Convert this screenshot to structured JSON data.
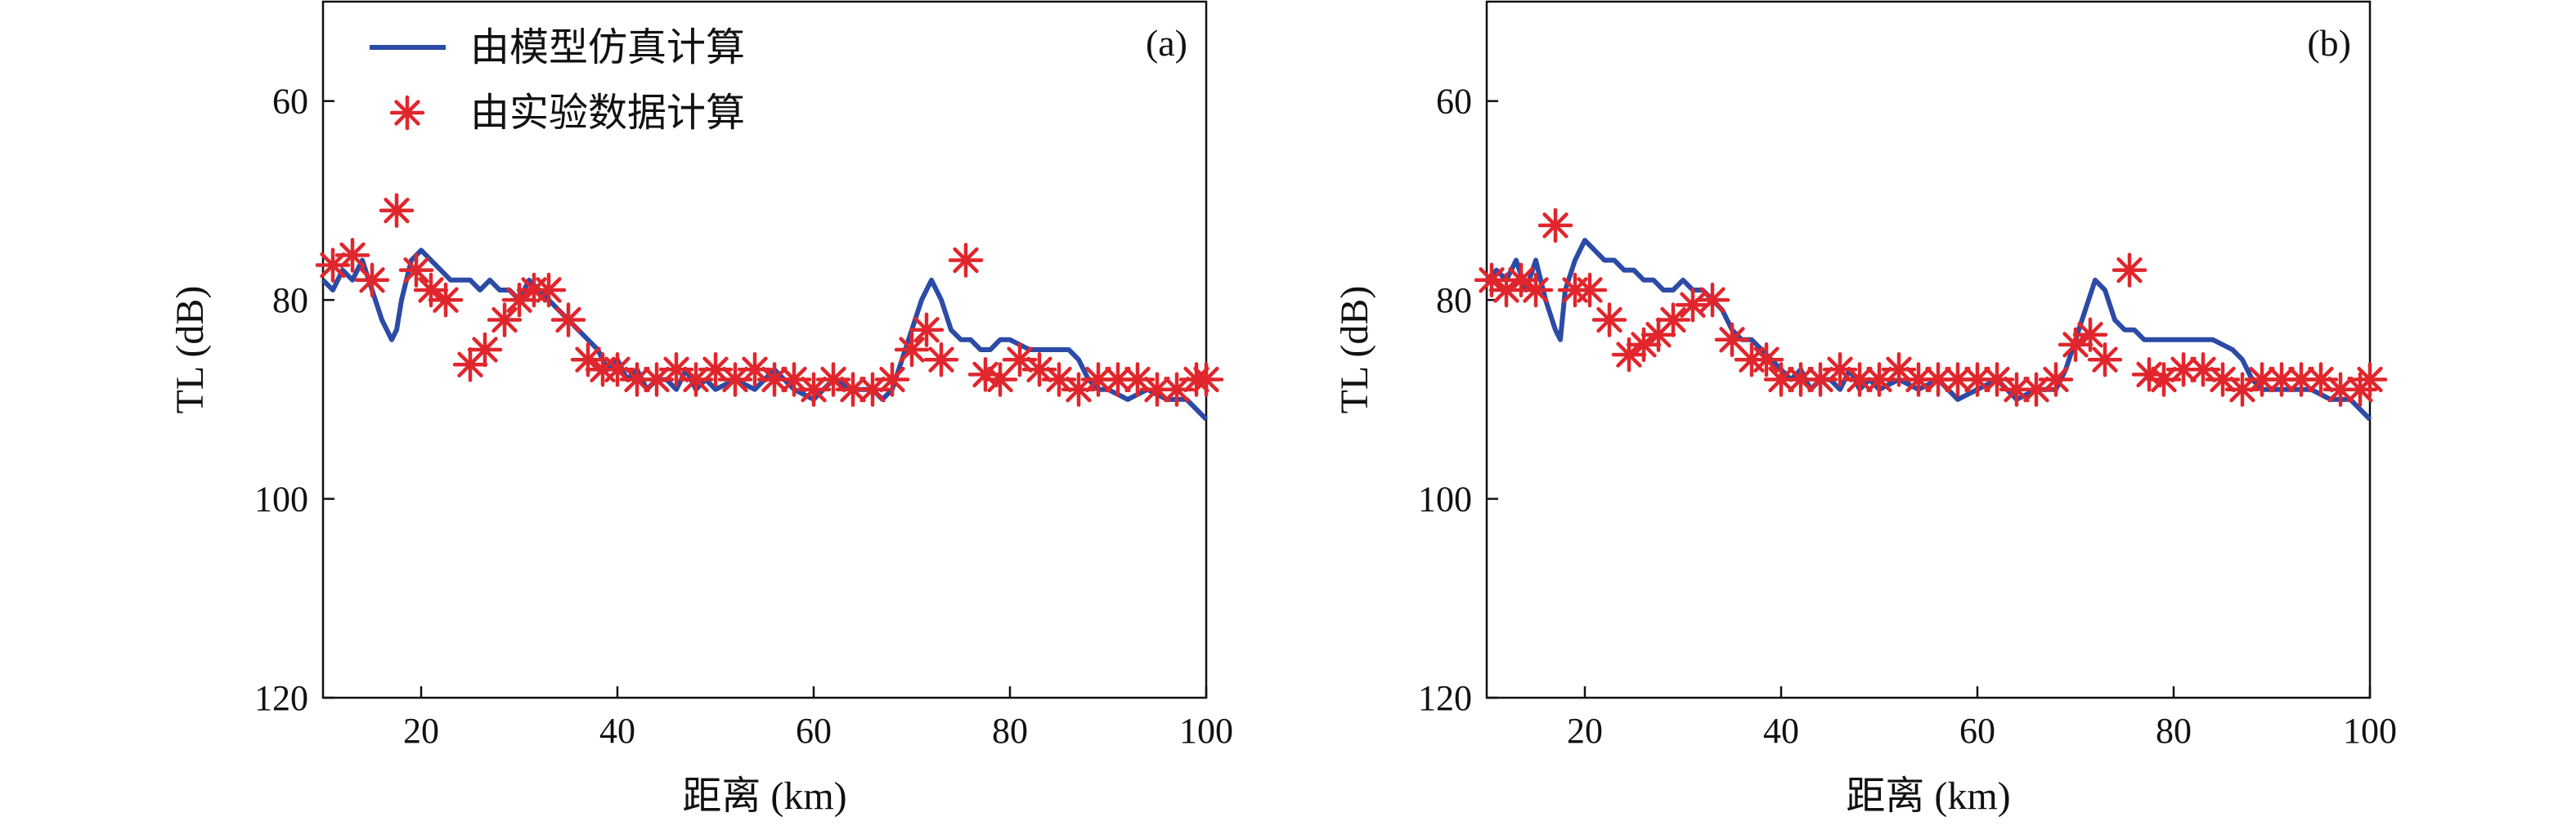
{
  "chart_data": [
    {
      "type": "line",
      "panel_label": "(a)",
      "xlabel": "距离 (km)",
      "ylabel": "TL (dB)",
      "xlim": [
        10,
        100
      ],
      "ylim": [
        50,
        120
      ],
      "y_inverted": true,
      "xticks": [
        20,
        40,
        60,
        80,
        100
      ],
      "yticks": [
        60,
        80,
        100,
        120
      ],
      "legend": {
        "placement": "top-left",
        "entries": [
          "由模型仿真计算",
          "由实验数据计算"
        ]
      },
      "series": [
        {
          "name": "由模型仿真计算",
          "kind": "line",
          "color": "#2b4ba6",
          "x": [
            10,
            11,
            12,
            13,
            14,
            15,
            16,
            17,
            17.5,
            18,
            19,
            20,
            21,
            22,
            23,
            24,
            25,
            26,
            27,
            28,
            29,
            30,
            31,
            32,
            33,
            34,
            35,
            36,
            37,
            38,
            39,
            40,
            41,
            42,
            43,
            44,
            45,
            46,
            47,
            48,
            49,
            50,
            52,
            54,
            56,
            58,
            60,
            62,
            64,
            66,
            67,
            68,
            69,
            70,
            71,
            72,
            73,
            74,
            75,
            76,
            77,
            78,
            79,
            80,
            82,
            84,
            86,
            87,
            88,
            89,
            90,
            92,
            94,
            96,
            98,
            99,
            100
          ],
          "y": [
            78,
            79,
            77,
            78,
            76,
            79,
            82,
            84,
            83,
            80,
            76,
            75,
            76,
            77,
            78,
            78,
            78,
            79,
            78,
            79,
            79,
            80,
            78,
            79,
            80,
            81,
            82,
            83,
            84,
            85,
            87,
            86,
            88,
            87,
            89,
            88,
            88,
            89,
            87,
            89,
            88,
            89,
            88,
            89,
            87,
            89,
            90,
            88,
            89,
            89,
            90,
            89,
            86,
            83,
            80,
            78,
            80,
            83,
            84,
            84,
            85,
            85,
            84,
            84,
            85,
            85,
            85,
            86,
            88,
            89,
            89,
            90,
            89,
            90,
            90,
            91,
            92
          ]
        },
        {
          "name": "由实验数据计算",
          "kind": "marker",
          "color": "#e0262c",
          "x": [
            11,
            13,
            15,
            17.5,
            19.5,
            21,
            22.5,
            25,
            26.5,
            28.5,
            30,
            31.5,
            33,
            35,
            37,
            38.5,
            40,
            42,
            44,
            46,
            48,
            50,
            52,
            54,
            56,
            58,
            60,
            62,
            64,
            66,
            68,
            70,
            71.5,
            73,
            75.5,
            77.5,
            79,
            81,
            83,
            85,
            87,
            89,
            91,
            93,
            95,
            97,
            99,
            100
          ],
          "y": [
            76.5,
            75.5,
            78,
            71,
            77,
            79,
            80,
            86.5,
            85,
            82,
            80,
            79,
            79,
            82,
            86,
            87,
            87,
            88,
            88,
            87,
            88,
            87,
            88,
            87,
            88,
            88,
            89,
            88,
            89,
            89,
            88,
            85,
            83,
            86,
            76,
            87.5,
            88,
            86,
            87,
            88,
            89,
            88,
            88,
            88,
            89,
            89,
            88,
            88
          ]
        }
      ]
    },
    {
      "type": "line",
      "panel_label": "(b)",
      "xlabel": "距离 (km)",
      "ylabel": "TL (dB)",
      "xlim": [
        10,
        100
      ],
      "ylim": [
        50,
        120
      ],
      "y_inverted": true,
      "xticks": [
        20,
        40,
        60,
        80,
        100
      ],
      "yticks": [
        60,
        80,
        100,
        120
      ],
      "series": [
        {
          "name": "由模型仿真计算",
          "kind": "line",
          "color": "#2b4ba6",
          "x": [
            10,
            11,
            12,
            13,
            14,
            15,
            16,
            17,
            17.5,
            18,
            19,
            20,
            21,
            22,
            23,
            24,
            25,
            26,
            27,
            28,
            29,
            30,
            31,
            32,
            33,
            34,
            35,
            36,
            37,
            38,
            39,
            40,
            41,
            42,
            43,
            44,
            45,
            46,
            47,
            48,
            49,
            50,
            52,
            54,
            56,
            58,
            60,
            62,
            64,
            66,
            67,
            68,
            69,
            70,
            71,
            72,
            73,
            74,
            75,
            76,
            77,
            78,
            79,
            80,
            82,
            84,
            86,
            87,
            88,
            89,
            90,
            92,
            94,
            96,
            98,
            99,
            100
          ],
          "y": [
            78,
            77,
            78,
            76,
            79,
            76,
            80,
            83,
            84,
            79,
            76,
            74,
            75,
            76,
            76,
            77,
            77,
            78,
            78,
            79,
            79,
            78,
            79,
            79,
            80,
            81,
            83,
            84,
            84,
            85,
            86,
            87,
            88,
            87,
            89,
            88,
            88,
            89,
            87,
            89,
            88,
            89,
            88,
            89,
            88,
            90,
            89,
            88,
            90,
            89,
            89,
            89,
            87,
            84,
            81,
            78,
            79,
            82,
            83,
            83,
            84,
            84,
            84,
            84,
            84,
            84,
            85,
            86,
            88,
            89,
            89,
            89,
            89,
            90,
            90,
            91,
            92
          ]
        },
        {
          "name": "由实验数据计算",
          "kind": "marker",
          "color": "#e0262c",
          "x": [
            10.5,
            12,
            13.5,
            15,
            17,
            19,
            20.5,
            22.5,
            24.5,
            26,
            27.5,
            29,
            31,
            33,
            35,
            37,
            38.5,
            40,
            42,
            44,
            46,
            48,
            50,
            52,
            54,
            56,
            58,
            60,
            62,
            64,
            66,
            68,
            70,
            71.5,
            73,
            75.5,
            77.5,
            79,
            81,
            83,
            85,
            87,
            89,
            91,
            93,
            95,
            97,
            99,
            100
          ],
          "y": [
            78,
            79,
            78,
            79,
            72.5,
            79,
            79,
            82,
            85.5,
            84.5,
            83.5,
            82,
            80.5,
            80,
            84,
            86,
            86,
            88,
            88,
            88,
            87,
            88,
            88,
            87,
            88,
            88,
            88,
            88,
            88,
            89,
            89,
            88,
            84.5,
            83.5,
            86,
            77,
            87.5,
            88,
            87,
            87,
            88,
            89,
            88,
            88,
            88,
            88,
            89,
            89,
            88
          ]
        }
      ]
    }
  ]
}
